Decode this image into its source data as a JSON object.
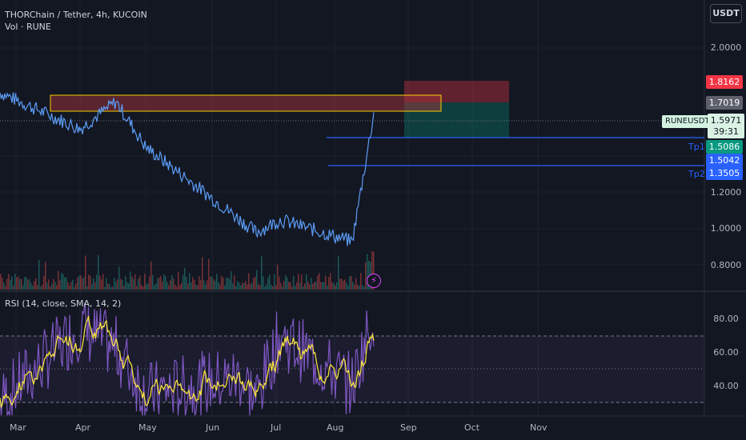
{
  "header": {
    "title": "THORChain / Tether, 4h, KUCOIN",
    "volume_label": "Vol · RUNE",
    "rsi_label": "RSI (14, close, SMA, 14, 2)"
  },
  "currency_button": "USDT",
  "price_axis": [
    "2.0000",
    "1.2000",
    "1.0000",
    "0.8000"
  ],
  "price_tags": {
    "stop": "1.8162",
    "entry_zone": "1.7019",
    "tp1": "1.5086",
    "line": "1.5042",
    "tp2": "1.3505"
  },
  "last_price": {
    "symbol": "RUNEUSDT",
    "price": "1.5971",
    "countdown": "39:31"
  },
  "drawings": {
    "tp1_label": "Tp1",
    "tp2_label": "Tp2"
  },
  "rsi_axis": [
    "80.00",
    "60.00",
    "40.00"
  ],
  "time_axis": [
    "Mar",
    "Apr",
    "May",
    "Jun",
    "Jul",
    "Aug",
    "Sep",
    "Oct",
    "Nov"
  ],
  "colors": {
    "background": "#131722",
    "price_line": "#5b9cf6",
    "rsi_line": "#7e57c2",
    "rsi_ma": "#ffeb3b",
    "stop_zone": "#f23645",
    "target_zone": "#089981",
    "tp_line": "#2962ff"
  },
  "chart_data": {
    "type": "line",
    "symbol": "RUNEUSDT",
    "timeframe": "4h",
    "x": [
      "Mar",
      "Apr",
      "Apr-mid",
      "May",
      "Jun",
      "Jun-end",
      "Jul",
      "Aug",
      "Aug-mid"
    ],
    "series": [
      {
        "name": "RUNEUSDT",
        "values": [
          1.75,
          1.55,
          1.7,
          1.45,
          1.05,
          0.98,
          1.05,
          0.93,
          1.66
        ]
      }
    ],
    "rsi": [
      30,
      75,
      62,
      35,
      45,
      33,
      70,
      40,
      85
    ],
    "ylim": [
      0.7,
      2.1
    ],
    "rsi_ylim": [
      20,
      92
    ]
  }
}
